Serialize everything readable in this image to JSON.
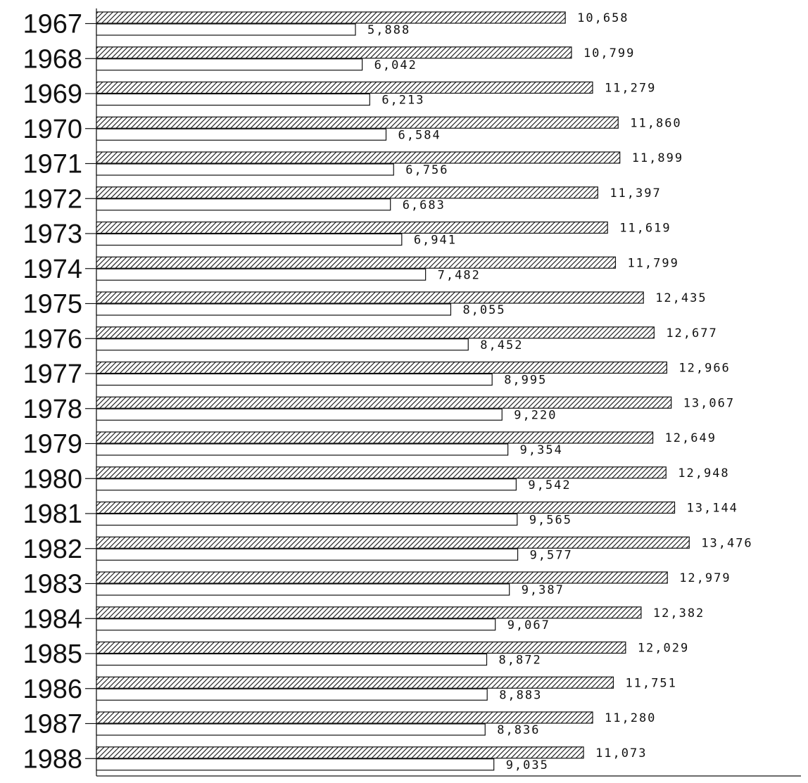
{
  "chart_data": {
    "type": "bar",
    "orientation": "horizontal",
    "categories": [
      "1967",
      "1968",
      "1969",
      "1970",
      "1971",
      "1972",
      "1973",
      "1974",
      "1975",
      "1976",
      "1977",
      "1978",
      "1979",
      "1980",
      "1981",
      "1982",
      "1983",
      "1984",
      "1985",
      "1986",
      "1987",
      "1988"
    ],
    "series": [
      {
        "style": "hatched",
        "values": [
          10658,
          10799,
          11279,
          11860,
          11899,
          11397,
          11619,
          11799,
          12435,
          12677,
          12966,
          13067,
          12649,
          12948,
          13144,
          13476,
          12979,
          12382,
          12029,
          11751,
          11280,
          11073
        ],
        "labels": [
          "10,658",
          "10,799",
          "11,279",
          "11,860",
          "11,899",
          "11,397",
          "11,619",
          "11,799",
          "12,435",
          "12,677",
          "12,966",
          "13,067",
          "12,649",
          "12,948",
          "13,144",
          "13,476",
          "12,979",
          "12,382",
          "12,029",
          "11,751",
          "11,280",
          "11,073"
        ]
      },
      {
        "style": "plain",
        "values": [
          5888,
          6042,
          6213,
          6584,
          6756,
          6683,
          6941,
          7482,
          8055,
          8452,
          8995,
          9220,
          9354,
          9542,
          9565,
          9577,
          9387,
          9067,
          8872,
          8883,
          8836,
          9035
        ],
        "labels": [
          "5,888",
          "6,042",
          "6,213",
          "6,584",
          "6,756",
          "6,683",
          "6,941",
          "7,482",
          "8,055",
          "8,452",
          "8,995",
          "9,220",
          "9,354",
          "9,542",
          "9,565",
          "9,577",
          "9,387",
          "9,067",
          "8,872",
          "8,883",
          "8,836",
          "9,035"
        ]
      }
    ],
    "xlim": [
      0,
      16000
    ],
    "grid": false,
    "legend": "none",
    "colors": {
      "ink": "#111111",
      "background": "#ffffff"
    }
  }
}
